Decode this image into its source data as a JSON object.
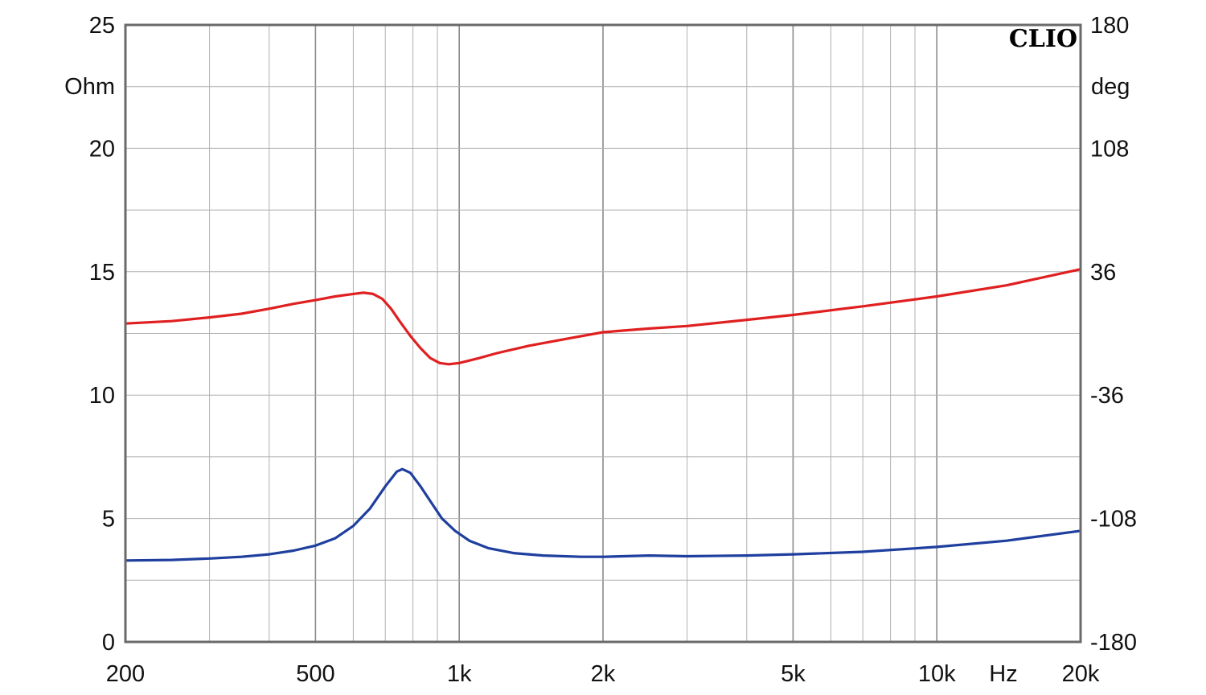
{
  "brand": "CLIO",
  "chart_data": {
    "type": "line",
    "xscale": "log",
    "xlim": [
      200,
      20000
    ],
    "ylim": [
      0,
      25
    ],
    "y2lim": [
      -180,
      180
    ],
    "ylabel": "Ohm",
    "y2label": "deg",
    "xunit": "Hz",
    "grid": true,
    "x_ticks": [
      {
        "value": 200,
        "label": "200"
      },
      {
        "value": 500,
        "label": "500"
      },
      {
        "value": 1000,
        "label": "1k"
      },
      {
        "value": 2000,
        "label": "2k"
      },
      {
        "value": 5000,
        "label": "5k"
      },
      {
        "value": 10000,
        "label": "10k"
      },
      {
        "value": 20000,
        "label": "20k"
      }
    ],
    "y_ticks": [
      {
        "value": 0,
        "label": "0"
      },
      {
        "value": 5,
        "label": "5"
      },
      {
        "value": 10,
        "label": "10"
      },
      {
        "value": 15,
        "label": "15"
      },
      {
        "value": 20,
        "label": "20"
      },
      {
        "value": 25,
        "label": "25"
      }
    ],
    "y2_ticks": [
      {
        "value": -180,
        "label": "-180"
      },
      {
        "value": -108,
        "label": "-108"
      },
      {
        "value": -36,
        "label": "-36"
      },
      {
        "value": 36,
        "label": "36"
      },
      {
        "value": 108,
        "label": "108"
      },
      {
        "value": 180,
        "label": "180"
      }
    ],
    "series": [
      {
        "color": "#e02020",
        "axis": "left",
        "points": [
          [
            200,
            12.9
          ],
          [
            250,
            13.0
          ],
          [
            300,
            13.15
          ],
          [
            350,
            13.3
          ],
          [
            400,
            13.5
          ],
          [
            450,
            13.7
          ],
          [
            500,
            13.85
          ],
          [
            550,
            14.0
          ],
          [
            600,
            14.1
          ],
          [
            630,
            14.15
          ],
          [
            660,
            14.1
          ],
          [
            690,
            13.9
          ],
          [
            720,
            13.5
          ],
          [
            750,
            13.0
          ],
          [
            790,
            12.4
          ],
          [
            830,
            11.9
          ],
          [
            870,
            11.5
          ],
          [
            910,
            11.3
          ],
          [
            950,
            11.25
          ],
          [
            1000,
            11.3
          ],
          [
            1100,
            11.5
          ],
          [
            1200,
            11.7
          ],
          [
            1400,
            12.0
          ],
          [
            1700,
            12.3
          ],
          [
            2000,
            12.55
          ],
          [
            2500,
            12.7
          ],
          [
            3000,
            12.8
          ],
          [
            4000,
            13.05
          ],
          [
            5000,
            13.25
          ],
          [
            7000,
            13.6
          ],
          [
            10000,
            14.0
          ],
          [
            14000,
            14.45
          ],
          [
            20000,
            15.1
          ]
        ]
      },
      {
        "color": "#1f3f9f",
        "axis": "left",
        "points": [
          [
            200,
            3.3
          ],
          [
            250,
            3.32
          ],
          [
            300,
            3.38
          ],
          [
            350,
            3.45
          ],
          [
            400,
            3.55
          ],
          [
            450,
            3.7
          ],
          [
            500,
            3.9
          ],
          [
            550,
            4.2
          ],
          [
            600,
            4.7
          ],
          [
            650,
            5.4
          ],
          [
            700,
            6.3
          ],
          [
            740,
            6.9
          ],
          [
            760,
            7.0
          ],
          [
            790,
            6.85
          ],
          [
            830,
            6.3
          ],
          [
            870,
            5.7
          ],
          [
            920,
            5.0
          ],
          [
            980,
            4.5
          ],
          [
            1050,
            4.1
          ],
          [
            1150,
            3.8
          ],
          [
            1300,
            3.6
          ],
          [
            1500,
            3.5
          ],
          [
            1800,
            3.45
          ],
          [
            2000,
            3.45
          ],
          [
            2500,
            3.5
          ],
          [
            3000,
            3.47
          ],
          [
            4000,
            3.5
          ],
          [
            5000,
            3.55
          ],
          [
            7000,
            3.65
          ],
          [
            10000,
            3.85
          ],
          [
            14000,
            4.1
          ],
          [
            20000,
            4.5
          ]
        ]
      }
    ]
  }
}
